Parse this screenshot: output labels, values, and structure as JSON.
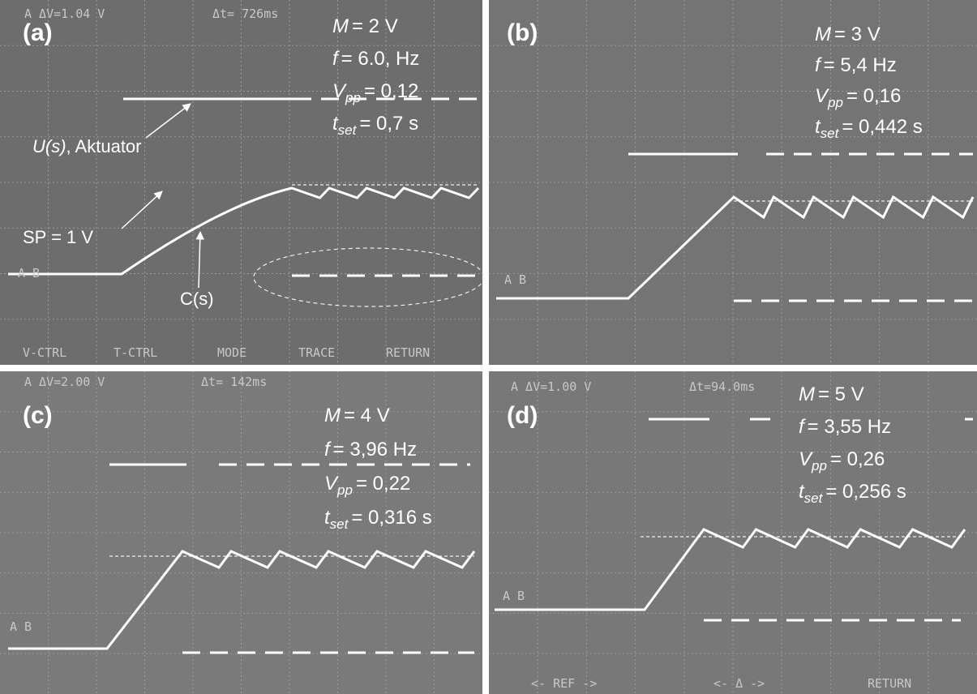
{
  "panels": [
    {
      "label": "(a)",
      "scope_header": [
        "A  ΔV=1.04 V",
        "Δt= 726ms"
      ],
      "scope_menu": [
        "V-CTRL",
        "T-CTRL",
        "MODE",
        "TRACE",
        "RETURN"
      ],
      "channel_marker": "A B",
      "params": [
        {
          "symbol": "M",
          "text": "= 2 V"
        },
        {
          "symbol": "f",
          "text": "= 6.0, Hz"
        },
        {
          "symbol": "V",
          "subscript": "pp",
          "text": "= 0,12"
        },
        {
          "symbol": "t",
          "subscript": "set",
          "text": "= 0,7 s"
        }
      ],
      "annotations": {
        "actuator_symbol": "U(s)",
        "actuator_text": ", Aktuator",
        "setpoint": "SP = 1 V",
        "output": "C(s)"
      }
    },
    {
      "label": "(b)",
      "channel_marker": "A B",
      "params": [
        {
          "symbol": "M",
          "text": "= 3 V"
        },
        {
          "symbol": "f",
          "text": "= 5,4 Hz"
        },
        {
          "symbol": "V",
          "subscript": "pp",
          "text": "= 0,16"
        },
        {
          "symbol": "t",
          "subscript": "set",
          "text": "= 0,442 s"
        }
      ]
    },
    {
      "label": "(c)",
      "scope_header": [
        "A  ΔV=2.00 V",
        "Δt= 142ms"
      ],
      "channel_marker": "A B",
      "params": [
        {
          "symbol": "M",
          "text": "= 4 V"
        },
        {
          "symbol": "f",
          "text": "= 3,96 Hz"
        },
        {
          "symbol": "V",
          "subscript": "pp",
          "text": "= 0,22"
        },
        {
          "symbol": "t",
          "subscript": "set",
          "text": "= 0,316 s"
        }
      ]
    },
    {
      "label": "(d)",
      "scope_header": [
        "A  ΔV=1.00 V",
        "Δt=94.0ms"
      ],
      "scope_menu": [
        "<-  REF  ->",
        "<-   Δ   ->",
        "RETURN"
      ],
      "channel_marker": "A B",
      "params": [
        {
          "symbol": "M",
          "text": "= 5 V"
        },
        {
          "symbol": "f",
          "text": "= 3,55 Hz"
        },
        {
          "symbol": "V",
          "subscript": "pp",
          "text": "= 0,26"
        },
        {
          "symbol": "t",
          "subscript": "set",
          "text": "= 0,256 s"
        }
      ]
    }
  ]
}
